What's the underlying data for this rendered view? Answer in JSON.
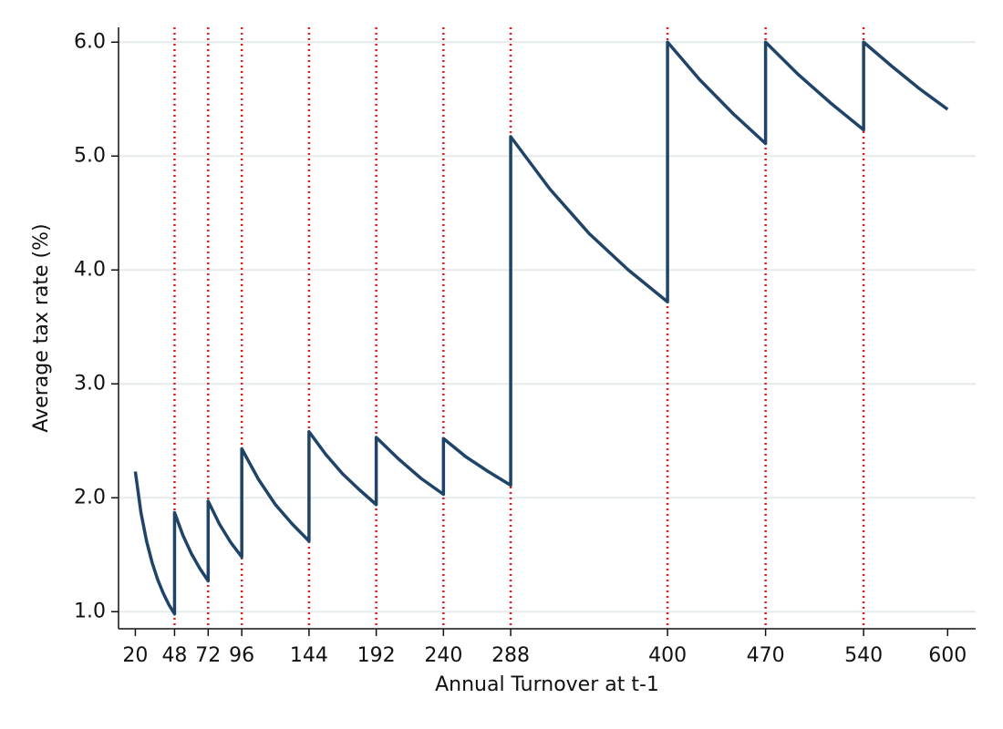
{
  "chart_data": {
    "type": "line",
    "x_label": "Annual Turnover at t-1",
    "y_label": "Average tax rate (%)",
    "x": [
      20,
      24,
      28,
      32,
      36,
      40,
      44,
      48,
      48,
      54,
      60,
      66,
      72,
      72,
      80,
      88,
      96,
      96,
      108,
      120,
      132,
      144,
      144,
      156,
      168,
      180,
      192,
      192,
      208,
      224,
      240,
      240,
      256,
      272,
      288,
      288,
      316,
      344,
      372,
      400,
      400,
      423,
      447,
      470,
      470,
      493,
      517,
      540,
      540,
      560,
      580,
      600
    ],
    "series": [
      {
        "color": "#1f4468",
        "values": [
          2.23,
          1.87,
          1.62,
          1.43,
          1.28,
          1.16,
          1.06,
          0.98,
          1.87,
          1.67,
          1.51,
          1.38,
          1.27,
          1.97,
          1.77,
          1.61,
          1.48,
          2.43,
          2.16,
          1.94,
          1.77,
          1.62,
          2.58,
          2.38,
          2.21,
          2.07,
          1.94,
          2.53,
          2.34,
          2.17,
          2.03,
          2.52,
          2.36,
          2.23,
          2.11,
          5.17,
          4.71,
          4.32,
          4.0,
          3.72,
          6.0,
          5.67,
          5.37,
          5.11,
          6.0,
          5.72,
          5.46,
          5.23,
          6.0,
          5.79,
          5.59,
          5.41
        ]
      }
    ],
    "vlines": [
      48,
      72,
      96,
      144,
      192,
      240,
      288,
      400,
      470,
      540
    ],
    "vline_color": "#e41a1c",
    "xlim": [
      8,
      620
    ],
    "ylim": [
      0.85,
      6.13
    ],
    "xticks": [
      20,
      48,
      72,
      96,
      144,
      192,
      240,
      288,
      400,
      470,
      540,
      600
    ],
    "yticks": [
      {
        "value": 1,
        "label": "1.0"
      },
      {
        "value": 2,
        "label": "2.0"
      },
      {
        "value": 3,
        "label": "3.0"
      },
      {
        "value": 4,
        "label": "4.0"
      },
      {
        "value": 5,
        "label": "5.0"
      },
      {
        "value": 6,
        "label": "6.0"
      }
    ],
    "grid": true
  }
}
